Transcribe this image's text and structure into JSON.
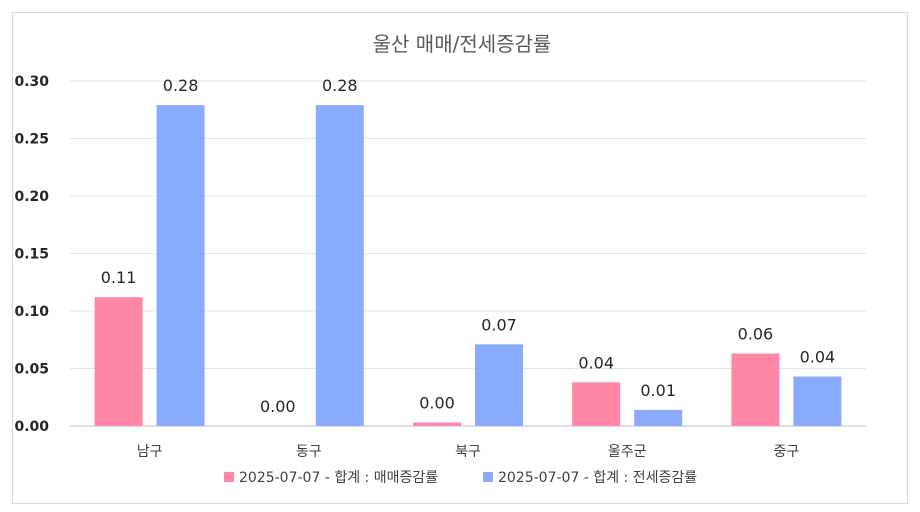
{
  "chart_data": {
    "type": "bar",
    "title": "울산 매매/전세증감률",
    "categories": [
      "남구",
      "동구",
      "북구",
      "울주군",
      "중구"
    ],
    "series": [
      {
        "name": "2025-07-07 - 합계 : 매매증감률",
        "color": "#ff86a4",
        "values": [
          0.112,
          0.0,
          0.003,
          0.038,
          0.063
        ],
        "labels": [
          "0.11",
          "0.00",
          "0.00",
          "0.04",
          "0.06"
        ]
      },
      {
        "name": "2025-07-07 - 합계 : 전세증감률",
        "color": "#8aaafd",
        "values": [
          0.279,
          0.279,
          0.071,
          0.014,
          0.043
        ],
        "labels": [
          "0.28",
          "0.28",
          "0.07",
          "0.01",
          "0.04"
        ]
      }
    ],
    "ylim": [
      0,
      0.3
    ],
    "yticks": [
      "0.00",
      "0.05",
      "0.10",
      "0.15",
      "0.20",
      "0.25",
      "0.30"
    ],
    "xlabel": "",
    "ylabel": "",
    "grid": true,
    "legend_position": "bottom"
  }
}
